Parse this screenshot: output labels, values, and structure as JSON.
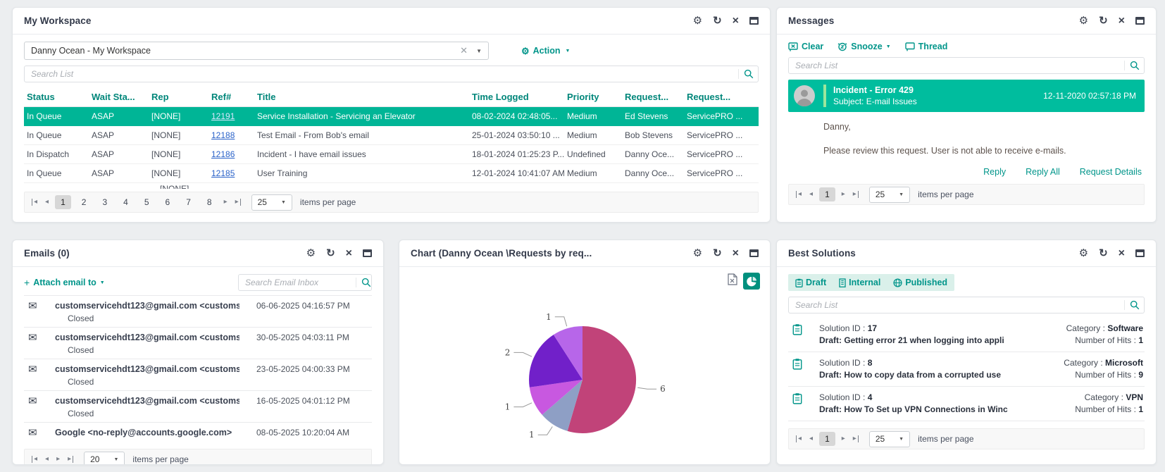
{
  "colors": {
    "teal": "#00958a",
    "teal_dark": "#00867a",
    "selected_row": "#00b596",
    "message_bar": "#00bd9e",
    "accent_green": "#9ce79c"
  },
  "workspace": {
    "title": "My Workspace",
    "combo_value": "Danny Ocean - My Workspace",
    "action_label": "Action",
    "search_placeholder": "Search List",
    "columns": [
      "Status",
      "Wait Sta...",
      "Rep",
      "Ref#",
      "Title",
      "Time Logged",
      "Priority",
      "Request...",
      "Request..."
    ],
    "rows": [
      {
        "status": "In Queue",
        "wait": "ASAP",
        "rep": "[NONE]",
        "ref": "12191",
        "title": "Service Installation - Servicing an Elevator",
        "time": "08-02-2024 02:48:05...",
        "priority": "Medium",
        "requester": "Ed Stevens",
        "request": "ServicePRO ..."
      },
      {
        "status": "In Queue",
        "wait": "ASAP",
        "rep": "[NONE]",
        "ref": "12188",
        "title": "Test Email - From Bob's email",
        "time": "25-01-2024 03:50:10 ...",
        "priority": "Medium",
        "requester": "Bob Stevens",
        "request": "ServicePRO ..."
      },
      {
        "status": "In Dispatch",
        "wait": "ASAP",
        "rep": "[NONE]",
        "ref": "12186",
        "title": "Incident - I have email issues",
        "time": "18-01-2024 01:25:23 P...",
        "priority": "Undefined",
        "requester": "Danny Oce...",
        "request": "ServicePRO ..."
      },
      {
        "status": "In Queue",
        "wait": "ASAP",
        "rep": "[NONE]",
        "ref": "12185",
        "title": "User Training",
        "time": "12-01-2024 10:41:07 AM",
        "priority": "Medium",
        "requester": "Danny Oce...",
        "request": "ServicePRO ..."
      }
    ],
    "partial_row_rep": "[NONE]",
    "pager": {
      "pages": [
        "1",
        "2",
        "3",
        "4",
        "5",
        "6",
        "7",
        "8"
      ],
      "current": "1",
      "size": "25",
      "items_label": "items per page"
    }
  },
  "messages": {
    "title": "Messages",
    "clear_label": "Clear",
    "snooze_label": "Snooze",
    "thread_label": "Thread",
    "search_placeholder": "Search List",
    "item": {
      "title": "Incident - Error 429",
      "subject": "Subject: E-mail Issues",
      "timestamp": "12-11-2020 02:57:18 PM",
      "greeting": "Danny,",
      "body": "Please review this request. User is not able to receive e-mails.",
      "reply": "Reply",
      "reply_all": "Reply All",
      "details": "Request Details"
    },
    "pager": {
      "pages": [
        "1"
      ],
      "current": "1",
      "size": "25",
      "items_label": "items per page"
    }
  },
  "emails": {
    "title": "Emails (0)",
    "attach_label": "Attach email to",
    "search_placeholder": "Search Email Inbox",
    "items": [
      {
        "sender": "customservicehdt123@gmail.com <customs",
        "date": "06-06-2025 04:16:57 PM",
        "status": "Closed"
      },
      {
        "sender": "customservicehdt123@gmail.com <customs",
        "date": "30-05-2025 04:03:11 PM",
        "status": "Closed"
      },
      {
        "sender": "customservicehdt123@gmail.com <customs",
        "date": "23-05-2025 04:00:33 PM",
        "status": "Closed"
      },
      {
        "sender": "customservicehdt123@gmail.com <customs",
        "date": "16-05-2025 04:01:12 PM",
        "status": "Closed"
      },
      {
        "sender": "Google <no-reply@accounts.google.com>",
        "date": "08-05-2025 10:20:04 AM",
        "status": ""
      }
    ],
    "pager": {
      "size": "20",
      "items_label": "items per page"
    }
  },
  "chart": {
    "title": "Chart (Danny Ocean \\Requests by req..."
  },
  "chart_data": {
    "type": "pie",
    "title": "Chart (Danny Ocean \\Requests by req...",
    "legend": false,
    "total": 11,
    "direction": "clockwise",
    "start_angle_deg": 0,
    "slices": [
      {
        "label": "6",
        "value": 6,
        "color": "#c14379"
      },
      {
        "label": "1",
        "value": 1,
        "color": "#8e9fc5"
      },
      {
        "label": "1",
        "value": 1,
        "color": "#c858e0"
      },
      {
        "label": "2",
        "value": 2,
        "color": "#7120c9"
      },
      {
        "label": "1",
        "value": 1,
        "color": "#b766e9"
      }
    ]
  },
  "solutions": {
    "title": "Best Solutions",
    "tabs": [
      {
        "label": "Draft"
      },
      {
        "label": "Internal"
      },
      {
        "label": "Published"
      }
    ],
    "search_placeholder": "Search List",
    "items": [
      {
        "id_label": "Solution ID :",
        "id": "17",
        "summary": "Draft: Getting error 21 when logging into appli",
        "category_label": "Category :",
        "category": "Software",
        "hits_label": "Number of Hits :",
        "hits": "1"
      },
      {
        "id_label": "Solution ID :",
        "id": "8",
        "summary": "Draft: How to copy data from a corrupted use",
        "category_label": "Category :",
        "category": "Microsoft",
        "hits_label": "Number of Hits :",
        "hits": "9"
      },
      {
        "id_label": "Solution ID :",
        "id": "4",
        "summary": "Draft: How To Set up VPN Connections in Winc",
        "category_label": "Category :",
        "category": "VPN",
        "hits_label": "Number of Hits :",
        "hits": "1"
      }
    ],
    "pager": {
      "pages": [
        "1"
      ],
      "current": "1",
      "size": "25",
      "items_label": "items per page"
    }
  }
}
